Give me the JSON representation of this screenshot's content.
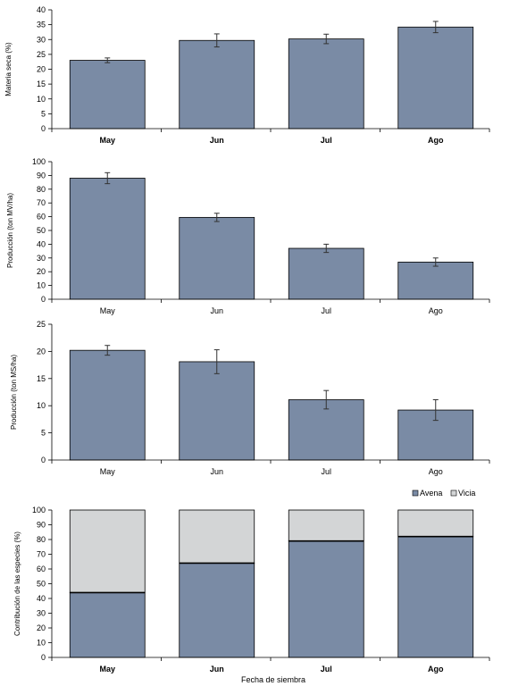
{
  "colors": {
    "bar": "#7a8ba5",
    "vicia": "#d3d5d6",
    "axis": "#000000",
    "errorbar": "#333333"
  },
  "chart_data": [
    {
      "type": "bar",
      "title": "",
      "xlabel": "",
      "ylabel": "Materia seca (%)",
      "categories": [
        "May",
        "Jun",
        "Jul",
        "Ago"
      ],
      "values": [
        23,
        29.7,
        30.2,
        34.2
      ],
      "errors": [
        0.8,
        2.2,
        1.6,
        1.9
      ],
      "ylim": [
        0,
        40
      ],
      "yticks": [
        0,
        5,
        10,
        15,
        20,
        25,
        30,
        35,
        40
      ],
      "grid": false
    },
    {
      "type": "bar",
      "title": "",
      "xlabel": "",
      "ylabel": "Producción (ton MV/ha)",
      "categories": [
        "May",
        "Jun",
        "Jul",
        "Ago"
      ],
      "values": [
        88,
        59.5,
        37,
        27
      ],
      "errors": [
        4,
        3,
        3,
        3
      ],
      "ylim": [
        0,
        100
      ],
      "yticks": [
        0,
        10,
        20,
        30,
        40,
        50,
        60,
        70,
        80,
        90,
        100
      ],
      "grid": false
    },
    {
      "type": "bar",
      "title": "",
      "xlabel": "",
      "ylabel": "Producción (ton MS/ha)",
      "categories": [
        "May",
        "Jun",
        "Jul",
        "Ago"
      ],
      "values": [
        20.2,
        18.1,
        11.1,
        9.2
      ],
      "errors": [
        0.9,
        2.2,
        1.7,
        1.9
      ],
      "ylim": [
        0,
        25
      ],
      "yticks": [
        0,
        5,
        10,
        15,
        20,
        25
      ],
      "grid": false
    },
    {
      "type": "bar",
      "stacked": true,
      "title": "",
      "xlabel": "Fecha de siembra",
      "ylabel": "Contribución de las especies (%)",
      "categories": [
        "May",
        "Jun",
        "Jul",
        "Ago"
      ],
      "series": [
        {
          "name": "Avena",
          "values": [
            44,
            64,
            79,
            82
          ]
        },
        {
          "name": "Vicia",
          "values": [
            56,
            36,
            21,
            18
          ]
        }
      ],
      "ylim": [
        0,
        100
      ],
      "yticks": [
        0,
        10,
        20,
        30,
        40,
        50,
        60,
        70,
        80,
        90,
        100
      ],
      "legend_position": "top-right",
      "grid": false
    }
  ]
}
